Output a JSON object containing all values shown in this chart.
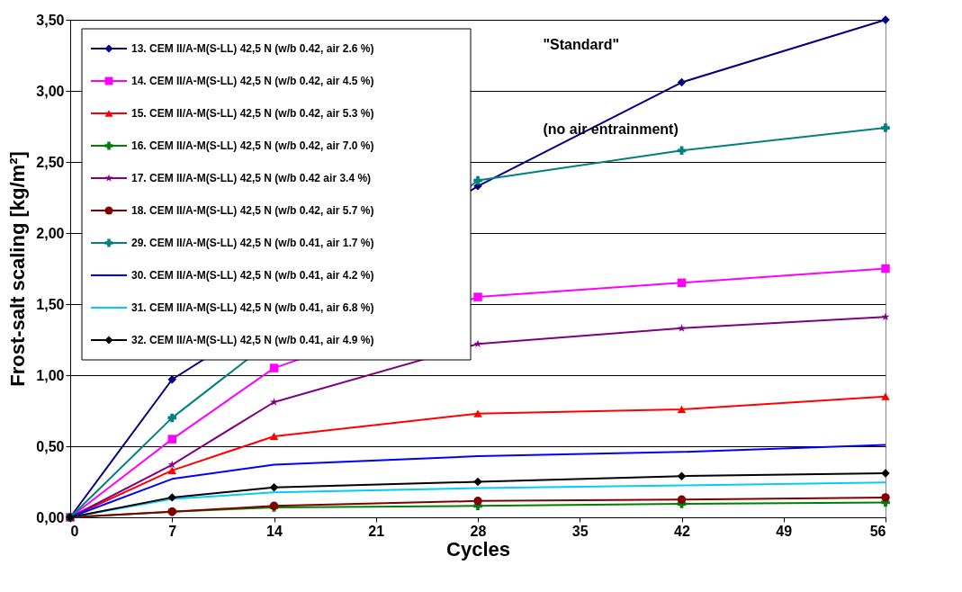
{
  "chart_data": {
    "type": "line",
    "xlabel": "Cycles",
    "ylabel": "Frost-salt scaling [kg/m²]",
    "x": [
      0,
      7,
      14,
      28,
      42,
      56
    ],
    "xlim": [
      0,
      56
    ],
    "xticks": [
      0,
      7,
      14,
      21,
      28,
      35,
      42,
      49,
      56
    ],
    "ylim": [
      0,
      3.5
    ],
    "yticks": [
      {
        "value": 0,
        "label": "0,00"
      },
      {
        "value": 0.5,
        "label": "0,50"
      },
      {
        "value": 1,
        "label": "1,00"
      },
      {
        "value": 1.5,
        "label": "1,50"
      },
      {
        "value": 2,
        "label": "2,00"
      },
      {
        "value": 2.5,
        "label": "2,50"
      },
      {
        "value": 3,
        "label": "3,00"
      },
      {
        "value": 3.5,
        "label": "3,50"
      }
    ],
    "grid": "y",
    "legend": "top left",
    "annotations": [
      "\"Standard\"",
      "(no air entrainment)"
    ],
    "series": [
      {
        "name": "13. CEM II/A-M(S-LL) 42,5 N (w/b 0.42, air 2.6 %)",
        "color": "#000080",
        "marker": "diamond",
        "values": [
          0,
          0.97,
          null,
          2.33,
          3.06,
          3.5
        ]
      },
      {
        "name": "14. CEM II/A-M(S-LL) 42,5 N (w/b 0.42, air 4.5 %)",
        "color": "#ff00ff",
        "marker": "square",
        "values": [
          0,
          0.55,
          1.05,
          1.55,
          1.65,
          1.75
        ]
      },
      {
        "name": "15. CEM II/A-M(S-LL) 42,5 N (w/b 0.42, air 5.3 %)",
        "color": "#ff0000",
        "marker": "triangle",
        "values": [
          0,
          0.33,
          0.57,
          0.73,
          0.76,
          0.85
        ]
      },
      {
        "name": "16. CEM II/A-M(S-LL) 42,5 N (w/b 0.42, air 7.0 %)",
        "color": "#008000",
        "marker": "cross",
        "values": [
          0,
          0.04,
          0.07,
          0.08,
          0.095,
          0.105
        ]
      },
      {
        "name": "17. CEM II/A-M(S-LL) 42,5 N (w/b 0.42 air 3.4 %)",
        "color": "#800080",
        "marker": "star",
        "values": [
          0,
          0.37,
          0.81,
          1.22,
          1.33,
          1.41
        ]
      },
      {
        "name": "18. CEM II/A-M(S-LL) 42,5 N (w/b 0.42, air 5.7 %)",
        "color": "#800000",
        "marker": "circle",
        "values": [
          0,
          0.04,
          0.08,
          0.115,
          0.125,
          0.14
        ]
      },
      {
        "name": "29. CEM II/A-M(S-LL) 42,5 N (w/b 0.41, air 1.7 %)",
        "color": "#008080",
        "marker": "cross",
        "values": [
          0,
          0.7,
          null,
          2.37,
          2.58,
          2.74
        ]
      },
      {
        "name": "30. CEM II/A-M(S-LL) 42,5 N (w/b 0.41, air 4.2 %)",
        "color": "#0000ff",
        "marker": "none",
        "values": [
          0,
          0.27,
          0.37,
          0.43,
          0.46,
          0.51
        ]
      },
      {
        "name": "31. CEM II/A-M(S-LL) 42,5 N (w/b 0.41, air 6.8 %)",
        "color": "#00ccff",
        "marker": "none",
        "values": [
          0,
          0.13,
          0.175,
          0.205,
          0.225,
          0.245
        ]
      },
      {
        "name": "32. CEM II/A-M(S-LL) 42,5 N (w/b 0.41, air 4.9 %)",
        "color": "#000000",
        "marker": "diamond",
        "values": [
          0,
          0.14,
          0.21,
          0.25,
          0.29,
          0.31
        ]
      }
    ]
  }
}
